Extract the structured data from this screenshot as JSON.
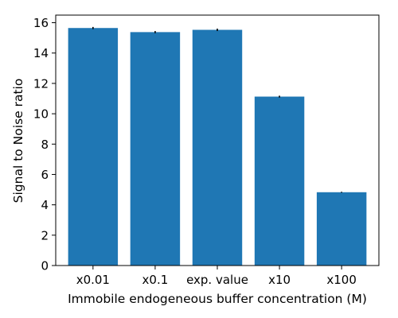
{
  "chart_data": {
    "type": "bar",
    "title": "",
    "categories": [
      "x0.01",
      "x0.1",
      "exp. value",
      "x10",
      "x100"
    ],
    "values": [
      15.65,
      15.38,
      15.53,
      11.13,
      4.83
    ],
    "errors": [
      0.07,
      0.07,
      0.08,
      0.06,
      0.03
    ],
    "xlabel": "Immobile endogeneous buffer concentration (M)",
    "ylabel": "Signal to Noise ratio",
    "ylim": [
      0,
      16.5
    ],
    "yticks": [
      0,
      2,
      4,
      6,
      8,
      10,
      12,
      14,
      16
    ],
    "grid": false,
    "bar_color": "#1f77b4",
    "error_color": "#000000"
  }
}
